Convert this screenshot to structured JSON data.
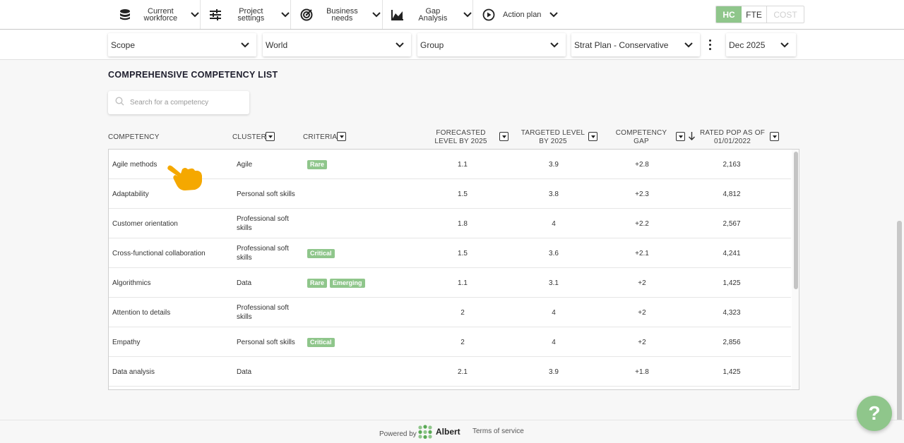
{
  "nav": {
    "items": [
      {
        "label": "Current workforce",
        "icon": "database-icon"
      },
      {
        "label": "Project settings",
        "icon": "sliders-icon"
      },
      {
        "label": "Business needs",
        "icon": "target-icon"
      },
      {
        "label": "Gap Analysis",
        "icon": "area-chart-icon"
      },
      {
        "label": "Action plan",
        "icon": "play-circle-icon"
      }
    ],
    "toggle": {
      "options": [
        "HC",
        "FTE",
        "COST"
      ],
      "selected": "HC"
    }
  },
  "filters": {
    "scope": "Scope",
    "world": "World",
    "group": "Group",
    "plan": "Strat Plan - Conservative",
    "date": "Dec 2025"
  },
  "page": {
    "title": "COMPREHENSIVE COMPETENCY LIST",
    "search_placeholder": "Search for a competency"
  },
  "table": {
    "headers": {
      "competency": "COMPETENCY",
      "cluster": "CLUSTER",
      "criteria": "CRITERIA",
      "forecasted": "FORECASTED LEVEL BY 2025",
      "targeted": "TARGETED LEVEL BY 2025",
      "gap": "COMPETENCY GAP",
      "pop": "RATED POP AS OF 01/01/2022"
    },
    "rows": [
      {
        "competency": "Agile methods",
        "cluster": "Agile",
        "criteria": [
          "Rare"
        ],
        "forecasted": "1.1",
        "targeted": "3.9",
        "gap": "+2.8",
        "pop": "2,163"
      },
      {
        "competency": "Adaptability",
        "cluster": "Personal soft skills",
        "criteria": [],
        "forecasted": "1.5",
        "targeted": "3.8",
        "gap": "+2.3",
        "pop": "4,812"
      },
      {
        "competency": "Customer orientation",
        "cluster": "Professional soft skills",
        "criteria": [],
        "forecasted": "1.8",
        "targeted": "4",
        "gap": "+2.2",
        "pop": "2,567"
      },
      {
        "competency": "Cross-functional collaboration",
        "cluster": "Professional soft skills",
        "criteria": [
          "Critical"
        ],
        "forecasted": "1.5",
        "targeted": "3.6",
        "gap": "+2.1",
        "pop": "4,241"
      },
      {
        "competency": "Algorithmics",
        "cluster": "Data",
        "criteria": [
          "Rare",
          "Emerging"
        ],
        "forecasted": "1.1",
        "targeted": "3.1",
        "gap": "+2",
        "pop": "1,425"
      },
      {
        "competency": "Attention to details",
        "cluster": "Professional soft skills",
        "criteria": [],
        "forecasted": "2",
        "targeted": "4",
        "gap": "+2",
        "pop": "4,323"
      },
      {
        "competency": "Empathy",
        "cluster": "Personal soft skills",
        "criteria": [
          "Critical"
        ],
        "forecasted": "2",
        "targeted": "4",
        "gap": "+2",
        "pop": "2,856"
      },
      {
        "competency": "Data analysis",
        "cluster": "Data",
        "criteria": [],
        "forecasted": "2.1",
        "targeted": "3.9",
        "gap": "+1.8",
        "pop": "1,425"
      }
    ]
  },
  "footer": {
    "powered_by": "Powered by",
    "brand": "Albert",
    "terms": "Terms of service"
  },
  "help": {
    "label": "?"
  },
  "colors": {
    "accent": "#8fc68b",
    "pointer": "#f5a800"
  }
}
